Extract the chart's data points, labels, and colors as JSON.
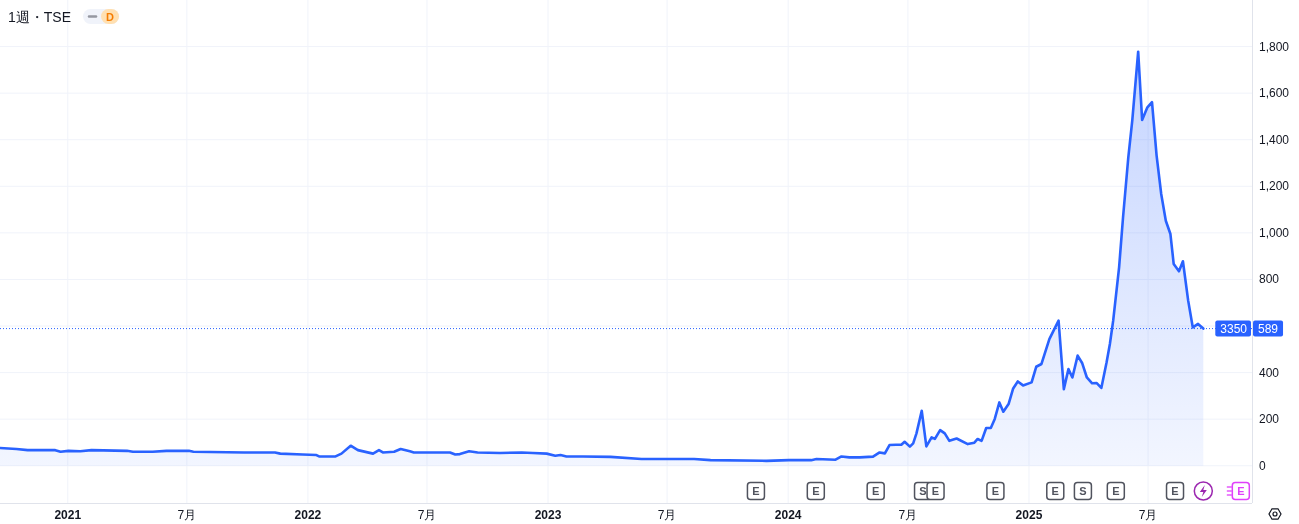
{
  "chart_data": {
    "type": "area",
    "title": "1週・TSE",
    "x": [
      "2020-09-20",
      "2020-10-15",
      "2020-11-01",
      "2020-12-13",
      "2020-12-21",
      "2021-01-02",
      "2021-01-20",
      "2021-02-06",
      "2021-04-01",
      "2021-04-10",
      "2021-05-10",
      "2021-05-31",
      "2021-07-04",
      "2021-07-11",
      "2021-09-26",
      "2021-11-12",
      "2021-11-20",
      "2021-12-24",
      "2022-01-14",
      "2022-01-18",
      "2022-02-12",
      "2022-02-21",
      "2022-03-07",
      "2022-03-18",
      "2022-04-10",
      "2022-04-19",
      "2022-04-25",
      "2022-05-12",
      "2022-05-22",
      "2022-06-05",
      "2022-06-11",
      "2022-08-05",
      "2022-08-13",
      "2022-08-20",
      "2022-09-03",
      "2022-09-16",
      "2022-10-20",
      "2022-11-22",
      "2022-12-09",
      "2022-12-30",
      "2023-01-12",
      "2023-01-20",
      "2023-01-29",
      "2023-02-23",
      "2023-04-06",
      "2023-05-23",
      "2023-08-11",
      "2023-09-05",
      "2023-11-29",
      "2024-01-02",
      "2024-02-05",
      "2024-02-13",
      "2024-03-13",
      "2024-03-22",
      "2024-04-03",
      "2024-04-19",
      "2024-05-09",
      "2024-05-19",
      "2024-05-27",
      "2024-06-03",
      "2024-06-13",
      "2024-06-21",
      "2024-06-26",
      "2024-07-04",
      "2024-07-09",
      "2024-07-14",
      "2024-07-22",
      "2024-07-29",
      "2024-08-06",
      "2024-08-11",
      "2024-08-19",
      "2024-08-26",
      "2024-09-02",
      "2024-09-13",
      "2024-09-30",
      "2024-10-10",
      "2024-10-15",
      "2024-10-21",
      "2024-10-28",
      "2024-11-04",
      "2024-11-10",
      "2024-11-17",
      "2024-11-23",
      "2024-12-01",
      "2024-12-08",
      "2024-12-15",
      "2024-12-23",
      "2025-01-05",
      "2025-01-12",
      "2025-01-20",
      "2025-02-01",
      "2025-02-15",
      "2025-02-23",
      "2025-03-02",
      "2025-03-08",
      "2025-03-16",
      "2025-03-23",
      "2025-03-30",
      "2025-04-07",
      "2025-04-14",
      "2025-04-21",
      "2025-04-29",
      "2025-05-04",
      "2025-05-09",
      "2025-05-18",
      "2025-05-24",
      "2025-06-01",
      "2025-06-07",
      "2025-06-16",
      "2025-06-22",
      "2025-06-30",
      "2025-07-07",
      "2025-07-14",
      "2025-07-21",
      "2025-07-28",
      "2025-08-04",
      "2025-08-09",
      "2025-08-17",
      "2025-08-23",
      "2025-08-31",
      "2025-09-07",
      "2025-09-15",
      "2025-09-23"
    ],
    "values": [
      76,
      72,
      67,
      67,
      60,
      64,
      62,
      67,
      64,
      60,
      60,
      64,
      64,
      60,
      57,
      57,
      52,
      48,
      46,
      40,
      40,
      52,
      86,
      67,
      52,
      67,
      57,
      60,
      72,
      62,
      57,
      57,
      48,
      50,
      62,
      57,
      55,
      57,
      55,
      52,
      43,
      46,
      40,
      40,
      38,
      29,
      29,
      24,
      21,
      24,
      24,
      29,
      26,
      40,
      36,
      36,
      39,
      57,
      53,
      89,
      90,
      90,
      103,
      82,
      96,
      139,
      236,
      83,
      122,
      115,
      153,
      139,
      107,
      117,
      93,
      99,
      115,
      107,
      162,
      162,
      201,
      272,
      232,
      265,
      332,
      362,
      345,
      358,
      425,
      437,
      544,
      623,
      329,
      415,
      379,
      473,
      440,
      379,
      354,
      355,
      334,
      444,
      523,
      623,
      852,
      1067,
      1324,
      1482,
      1778,
      1485,
      1539,
      1561,
      1332,
      1167,
      1052,
      995,
      866,
      835,
      878,
      709,
      594,
      609,
      589
    ],
    "color": "#2962ff",
    "xlim": [
      "2020-09-20",
      "2025-12-06"
    ],
    "xticks": [
      {
        "value": "2021-01-01",
        "label": "2021"
      },
      {
        "value": "2021-07-01",
        "label": "7月"
      },
      {
        "value": "2022-01-01",
        "label": "2022"
      },
      {
        "value": "2022-07-01",
        "label": "7月"
      },
      {
        "value": "2023-01-01",
        "label": "2023"
      },
      {
        "value": "2023-07-01",
        "label": "7月"
      },
      {
        "value": "2024-01-01",
        "label": "2024"
      },
      {
        "value": "2024-07-01",
        "label": "7月"
      },
      {
        "value": "2025-01-01",
        "label": "2025"
      },
      {
        "value": "2025-07-01",
        "label": "7月"
      }
    ],
    "ylim": [
      -160,
      2000
    ],
    "yticks": [
      0,
      200,
      400,
      {
        "value": 600,
        "label": null
      },
      800,
      {
        "value": 1000,
        "label": "1,000"
      },
      {
        "value": 1200,
        "label": "1,200"
      },
      {
        "value": 1400,
        "label": "1,400"
      },
      {
        "value": 1600,
        "label": "1,600"
      },
      {
        "value": 1800,
        "label": "1,800"
      }
    ],
    "grid": true,
    "ref_lines": [
      {
        "axis": "y",
        "value": 589,
        "label": "589",
        "color": "#2962ff",
        "line_style": "dotted"
      }
    ],
    "annotations": [
      "D",
      {
        "text": "3350",
        "y": 589
      },
      {
        "text": "E",
        "x": "2023-11-13"
      },
      {
        "text": "E",
        "x": "2024-02-12"
      },
      {
        "text": "E",
        "x": "2024-05-13"
      },
      {
        "text": "S",
        "x": "2024-07-24"
      },
      {
        "text": "E",
        "x": "2024-08-12"
      },
      {
        "text": "E",
        "x": "2024-11-11"
      },
      {
        "text": "E",
        "x": "2025-02-10"
      },
      {
        "text": "S",
        "x": "2025-03-24"
      },
      {
        "text": "E",
        "x": "2025-05-13"
      },
      {
        "text": "E",
        "x": "2025-08-11"
      },
      {
        "text": "E",
        "x": "2025-11-19"
      }
    ]
  }
}
